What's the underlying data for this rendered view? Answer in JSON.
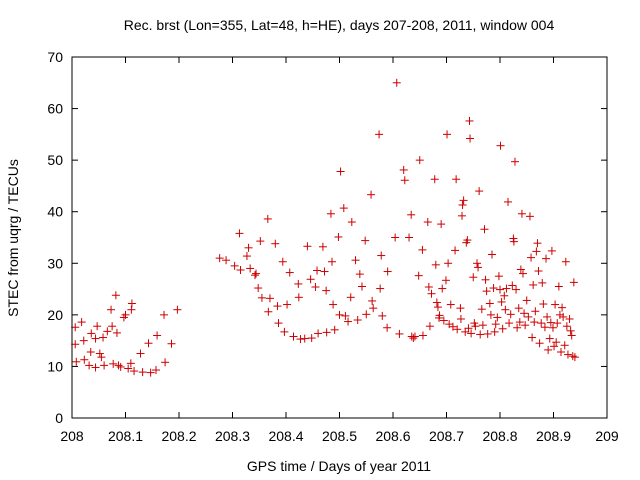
{
  "chart_data": {
    "type": "scatter",
    "title": "Rec. brst (Lon=355, Lat=48, h=HE), days 207-208, 2011, window 004",
    "xlabel": "GPS time / Days of year 2011",
    "ylabel": "STEC from uqrg / TECUs",
    "xlim": [
      208,
      209
    ],
    "ylim": [
      0,
      70
    ],
    "xticks": [
      208,
      208.1,
      208.2,
      208.3,
      208.4,
      208.5,
      208.6,
      208.7,
      208.8,
      208.9,
      209
    ],
    "xtick_labels": [
      "208",
      "208.1",
      "208.2",
      "208.3",
      "208.4",
      "208.5",
      "208.6",
      "208.7",
      "208.8",
      "208.9",
      "209"
    ],
    "yticks": [
      0,
      10,
      20,
      30,
      40,
      50,
      60,
      70
    ],
    "ytick_labels": [
      "0",
      "10",
      "20",
      "30",
      "40",
      "50",
      "60",
      "70"
    ],
    "grid": false,
    "marker": "+",
    "marker_color": "#cc0000",
    "series": [
      {
        "name": "STEC",
        "points": [
          [
            208.006,
            17.6
          ],
          [
            208.006,
            14.3
          ],
          [
            208.008,
            10.9
          ],
          [
            208.018,
            18.6
          ],
          [
            208.022,
            15.0
          ],
          [
            208.023,
            11.3
          ],
          [
            208.032,
            10.2
          ],
          [
            208.036,
            16.4
          ],
          [
            208.035,
            12.8
          ],
          [
            208.044,
            15.4
          ],
          [
            208.044,
            9.8
          ],
          [
            208.047,
            17.8
          ],
          [
            208.052,
            12.5
          ],
          [
            208.055,
            11.8
          ],
          [
            208.058,
            15.6
          ],
          [
            208.06,
            10.2
          ],
          [
            208.066,
            16.8
          ],
          [
            208.073,
            21.0
          ],
          [
            208.075,
            17.8
          ],
          [
            208.077,
            10.5
          ],
          [
            208.082,
            23.8
          ],
          [
            208.084,
            16.5
          ],
          [
            208.087,
            10.2
          ],
          [
            208.091,
            9.9
          ],
          [
            208.097,
            19.5
          ],
          [
            208.1,
            20.0
          ],
          [
            208.105,
            9.6
          ],
          [
            208.11,
            10.6
          ],
          [
            208.111,
            21.0
          ],
          [
            208.112,
            22.2
          ],
          [
            208.116,
            9.1
          ],
          [
            208.128,
            12.5
          ],
          [
            208.132,
            8.9
          ],
          [
            208.143,
            14.5
          ],
          [
            208.147,
            8.8
          ],
          [
            208.157,
            9.3
          ],
          [
            208.159,
            16.0
          ],
          [
            208.172,
            20.0
          ],
          [
            208.174,
            10.8
          ],
          [
            208.186,
            14.4
          ],
          [
            208.197,
            21.0
          ],
          [
            208.276,
            31.0
          ],
          [
            208.288,
            30.6
          ],
          [
            208.304,
            29.5
          ],
          [
            208.313,
            35.8
          ],
          [
            208.315,
            28.7
          ],
          [
            208.327,
            31.4
          ],
          [
            208.33,
            33.0
          ],
          [
            208.333,
            29.0
          ],
          [
            208.342,
            27.7
          ],
          [
            208.344,
            28.0
          ],
          [
            208.348,
            25.2
          ],
          [
            208.352,
            34.3
          ],
          [
            208.355,
            23.3
          ],
          [
            208.366,
            38.6
          ],
          [
            208.367,
            20.6
          ],
          [
            208.37,
            23.2
          ],
          [
            208.38,
            33.8
          ],
          [
            208.384,
            21.7
          ],
          [
            208.386,
            18.4
          ],
          [
            208.394,
            30.3
          ],
          [
            208.397,
            16.7
          ],
          [
            208.402,
            22.0
          ],
          [
            208.407,
            28.2
          ],
          [
            208.414,
            15.8
          ],
          [
            208.423,
            26.0
          ],
          [
            208.424,
            23.4
          ],
          [
            208.427,
            15.3
          ],
          [
            208.435,
            15.4
          ],
          [
            208.44,
            33.3
          ],
          [
            208.446,
            26.9
          ],
          [
            208.448,
            15.5
          ],
          [
            208.455,
            25.4
          ],
          [
            208.458,
            28.6
          ],
          [
            208.46,
            16.4
          ],
          [
            208.469,
            33.2
          ],
          [
            208.472,
            28.4
          ],
          [
            208.475,
            24.7
          ],
          [
            208.476,
            16.6
          ],
          [
            208.484,
            39.6
          ],
          [
            208.486,
            30.3
          ],
          [
            208.488,
            22.0
          ],
          [
            208.491,
            17.1
          ],
          [
            208.498,
            35.1
          ],
          [
            208.5,
            20.0
          ],
          [
            208.502,
            47.8
          ],
          [
            208.508,
            40.7
          ],
          [
            208.511,
            19.8
          ],
          [
            208.516,
            18.7
          ],
          [
            208.521,
            23.4
          ],
          [
            208.523,
            38.0
          ],
          [
            208.53,
            30.6
          ],
          [
            208.534,
            19.0
          ],
          [
            208.538,
            27.9
          ],
          [
            208.542,
            25.5
          ],
          [
            208.548,
            34.4
          ],
          [
            208.55,
            20.1
          ],
          [
            208.559,
            43.3
          ],
          [
            208.561,
            22.7
          ],
          [
            208.563,
            21.3
          ],
          [
            208.574,
            55.0
          ],
          [
            208.576,
            25.1
          ],
          [
            208.578,
            31.5
          ],
          [
            208.58,
            19.8
          ],
          [
            208.589,
            17.5
          ],
          [
            208.59,
            28.4
          ],
          [
            208.604,
            35.0
          ],
          [
            208.607,
            65.0
          ],
          [
            208.612,
            16.3
          ],
          [
            208.62,
            48.1
          ],
          [
            208.622,
            46.1
          ],
          [
            208.63,
            35.0
          ],
          [
            208.634,
            39.4
          ],
          [
            208.635,
            15.8
          ],
          [
            208.638,
            15.5
          ],
          [
            208.641,
            15.8
          ],
          [
            208.648,
            27.6
          ],
          [
            208.65,
            50.0
          ],
          [
            208.655,
            32.6
          ],
          [
            208.656,
            16.0
          ],
          [
            208.665,
            38.0
          ],
          [
            208.667,
            25.4
          ],
          [
            208.669,
            17.8
          ],
          [
            208.672,
            24.1
          ],
          [
            208.678,
            46.3
          ],
          [
            208.68,
            29.7
          ],
          [
            208.682,
            22.4
          ],
          [
            208.684,
            21.5
          ],
          [
            208.686,
            19.4
          ],
          [
            208.687,
            19.9
          ],
          [
            208.69,
            37.6
          ],
          [
            208.692,
            25.1
          ],
          [
            208.695,
            18.9
          ],
          [
            208.699,
            26.7
          ],
          [
            208.701,
            55.0
          ],
          [
            208.703,
            30.0
          ],
          [
            208.705,
            18.2
          ],
          [
            208.708,
            22.0
          ],
          [
            208.712,
            17.7
          ],
          [
            208.716,
            32.5
          ],
          [
            208.718,
            46.3
          ],
          [
            208.72,
            17.2
          ],
          [
            208.726,
            21.3
          ],
          [
            208.727,
            19.2
          ],
          [
            208.729,
            39.2
          ],
          [
            208.73,
            41.3
          ],
          [
            208.732,
            42.2
          ],
          [
            208.735,
            16.7
          ],
          [
            208.737,
            34.0
          ],
          [
            208.739,
            34.5
          ],
          [
            208.741,
            17.4
          ],
          [
            208.743,
            57.6
          ],
          [
            208.744,
            54.2
          ],
          [
            208.746,
            16.4
          ],
          [
            208.75,
            27.3
          ],
          [
            208.752,
            18.4
          ],
          [
            208.754,
            17.8
          ],
          [
            208.757,
            30.0
          ],
          [
            208.759,
            29.2
          ],
          [
            208.761,
            44.0
          ],
          [
            208.763,
            16.2
          ],
          [
            208.766,
            21.1
          ],
          [
            208.768,
            18.0
          ],
          [
            208.771,
            36.6
          ],
          [
            208.773,
            26.8
          ],
          [
            208.775,
            24.6
          ],
          [
            208.777,
            16.3
          ],
          [
            208.781,
            22.2
          ],
          [
            208.783,
            20.0
          ],
          [
            208.785,
            31.7
          ],
          [
            208.788,
            25.2
          ],
          [
            208.79,
            16.7
          ],
          [
            208.792,
            18.2
          ],
          [
            208.795,
            19.5
          ],
          [
            208.798,
            27.5
          ],
          [
            208.8,
            24.9
          ],
          [
            208.801,
            52.8
          ],
          [
            208.803,
            22.5
          ],
          [
            208.805,
            17.3
          ],
          [
            208.808,
            23.7
          ],
          [
            208.81,
            21.0
          ],
          [
            208.812,
            25.1
          ],
          [
            208.815,
            41.9
          ],
          [
            208.817,
            18.4
          ],
          [
            208.82,
            20.1
          ],
          [
            208.823,
            25.7
          ],
          [
            208.825,
            34.8
          ],
          [
            208.826,
            34.2
          ],
          [
            208.828,
            49.7
          ],
          [
            208.83,
            24.9
          ],
          [
            208.832,
            17.5
          ],
          [
            208.835,
            21.3
          ],
          [
            208.837,
            18.6
          ],
          [
            208.839,
            28.8
          ],
          [
            208.841,
            39.6
          ],
          [
            208.843,
            28.0
          ],
          [
            208.845,
            20.3
          ],
          [
            208.847,
            18.0
          ],
          [
            208.85,
            22.8
          ],
          [
            208.853,
            19.6
          ],
          [
            208.856,
            39.1
          ],
          [
            208.858,
            31.1
          ],
          [
            208.86,
            15.6
          ],
          [
            208.862,
            25.8
          ],
          [
            208.864,
            18.6
          ],
          [
            208.866,
            20.7
          ],
          [
            208.868,
            32.3
          ],
          [
            208.87,
            33.9
          ],
          [
            208.872,
            28.5
          ],
          [
            208.874,
            14.5
          ],
          [
            208.877,
            18.4
          ],
          [
            208.879,
            26.2
          ],
          [
            208.881,
            22.1
          ],
          [
            208.884,
            17.6
          ],
          [
            208.886,
            30.9
          ],
          [
            208.888,
            19.6
          ],
          [
            208.89,
            13.2
          ],
          [
            208.893,
            15.4
          ],
          [
            208.895,
            18.5
          ],
          [
            208.897,
            32.4
          ],
          [
            208.899,
            17.5
          ],
          [
            208.901,
            13.9
          ],
          [
            208.903,
            22.0
          ],
          [
            208.905,
            14.7
          ],
          [
            208.907,
            18.4
          ],
          [
            208.91,
            25.5
          ],
          [
            208.912,
            20.0
          ],
          [
            208.914,
            12.8
          ],
          [
            208.916,
            21.4
          ],
          [
            208.918,
            19.6
          ],
          [
            208.921,
            14.1
          ],
          [
            208.923,
            30.3
          ],
          [
            208.925,
            17.8
          ],
          [
            208.927,
            12.3
          ],
          [
            208.93,
            19.2
          ],
          [
            208.932,
            16.9
          ],
          [
            208.934,
            16.0
          ],
          [
            208.936,
            12.0
          ],
          [
            208.938,
            26.3
          ],
          [
            208.94,
            11.8
          ]
        ]
      }
    ]
  }
}
